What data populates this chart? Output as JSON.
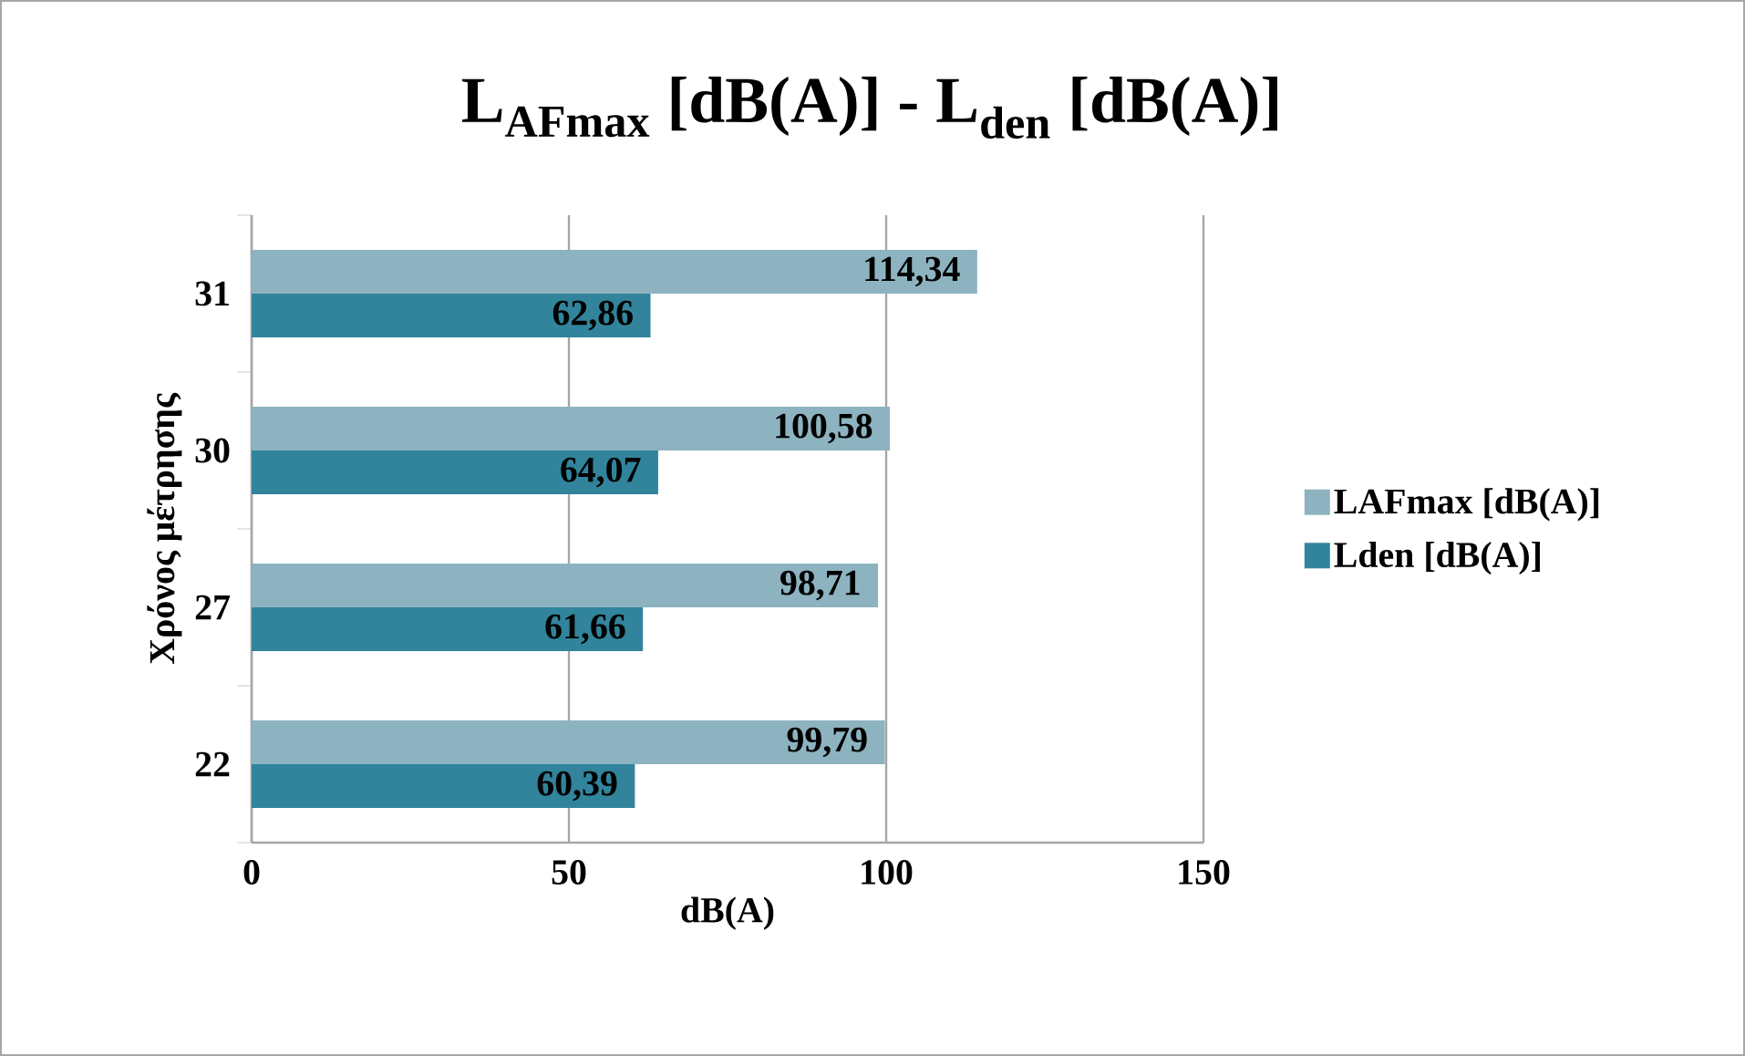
{
  "chart_data": {
    "type": "bar",
    "orientation": "horizontal",
    "title": "L$_{AFmax}$ [dB(A)] - L$_{den}$ [dB(A)]",
    "xlabel": "dB(A)",
    "ylabel": "Χρόνος μέτρησης",
    "categories": [
      "31",
      "30",
      "27",
      "22"
    ],
    "series": [
      {
        "name": "LAFmax [dB(A)]",
        "color": "#8db3c0",
        "values": [
          114.34,
          100.58,
          98.71,
          99.79
        ],
        "value_labels": [
          "114,34",
          "100,58",
          "98,71",
          "99,79"
        ]
      },
      {
        "name": "Lden [dB(A)]",
        "color": "#31849b",
        "values": [
          62.86,
          64.07,
          61.66,
          60.39
        ],
        "value_labels": [
          "62,86",
          "64,07",
          "61,66",
          "60,39"
        ]
      }
    ],
    "xlim": [
      0,
      150
    ],
    "xticks": [
      0,
      50,
      100,
      150
    ],
    "grid": "x",
    "legend": "right"
  }
}
